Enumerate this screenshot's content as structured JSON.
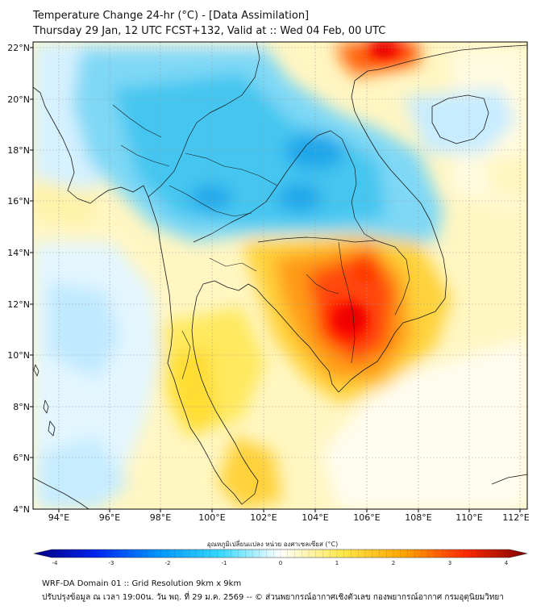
{
  "header": {
    "title_line1": "Temperature Change 24-hr (°C) - [Data Assimilation]",
    "title_line2": "Thursday 29 Jan, 12 UTC FCST+132, Valid at :: Wed 04 Feb, 00 UTC"
  },
  "map": {
    "lat_labels": [
      "22°N",
      "20°N",
      "18°N",
      "16°N",
      "14°N",
      "12°N",
      "10°N",
      "8°N",
      "6°N",
      "4°N"
    ],
    "lon_labels": [
      "94°E",
      "96°E",
      "98°E",
      "100°E",
      "102°E",
      "104°E",
      "106°E",
      "108°E",
      "110°E",
      "112°E"
    ]
  },
  "colorbar": {
    "title": "อุณหภูมิเปลี่ยนแปลง หน่วย องศาเซลเซียส (°C)",
    "ticks": [
      "-4",
      "-3",
      "-2",
      "-1",
      "0",
      "1",
      "2",
      "3",
      "4"
    ],
    "colors": [
      "#00007f",
      "#0029ff",
      "#00a4ff",
      "#33dfff",
      "#ffffff",
      "#ffe54a",
      "#ffa200",
      "#ff2a00",
      "#7f0000"
    ]
  },
  "footer": {
    "line1": "WRF-DA Domain 01 :: Grid Resolution 9km x 9km",
    "line2": "ปรับปรุงข้อมูล ณ เวลา 19:00น. วัน พฤ. ที่ 29 ม.ค. 2569 -- © ส่วนพยากรณ์อากาศเชิงตัวเลข กองพยากรณ์อากาศ กรมอุตุนิยมวิทยา"
  }
}
